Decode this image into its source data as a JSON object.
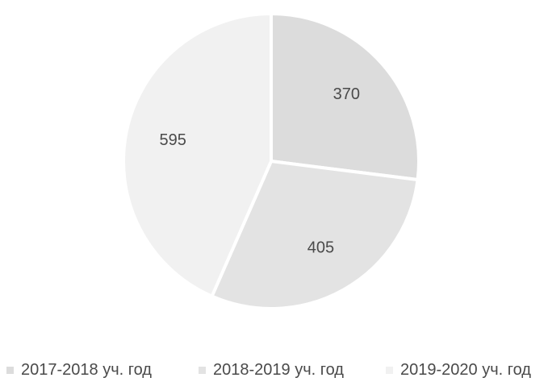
{
  "chart_data": {
    "type": "pie",
    "title": "",
    "categories": [
      "2017-2018 уч. год",
      "2018-2019 уч. год",
      "2019-2020 уч. год"
    ],
    "values": [
      370,
      405,
      595
    ],
    "data_labels": [
      "370",
      "405",
      "595"
    ],
    "colors": [
      "#dcdcdc",
      "#e3e3e3",
      "#f1f1f1"
    ],
    "legend_position": "bottom"
  }
}
